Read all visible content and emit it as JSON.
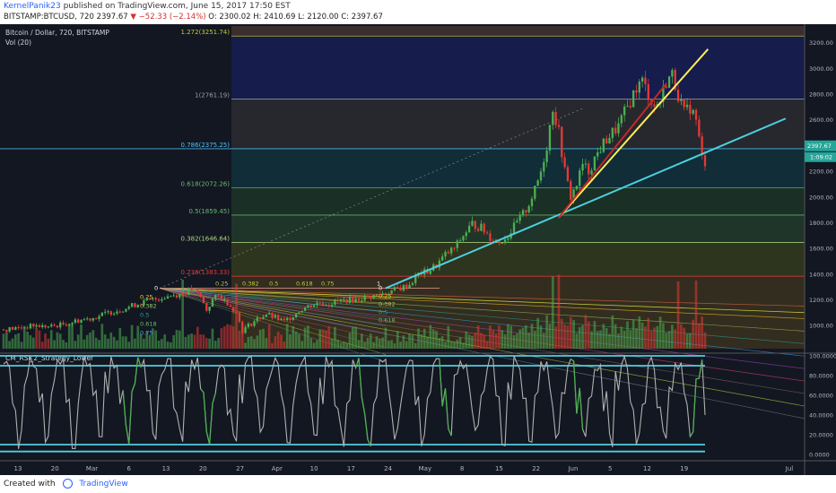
{
  "header": {
    "user": "KernelPanik23",
    "published": "published on TradingView.com, June 15, 2017 17:50 EST",
    "symbol_line": "BITSTAMP:BTCUSD, 720",
    "last": "2397.67",
    "change": "−52.33 (−2.14%)",
    "ohlc": "O: 2300.02 H: 2410.69 L: 2120.00 C: 2397.67"
  },
  "footer": {
    "created_with": "Created with",
    "brand": "TradingView"
  },
  "colors": {
    "bg": "#131722",
    "up": "#4caf50",
    "down": "#e53935",
    "cyan": "#4dd0e1",
    "yellow": "#ffee58",
    "red": "#c62828",
    "rsi": "#b0b0b0"
  },
  "chart_data": [
    {
      "type": "candlestick",
      "title": "Bitcoin / Dollar, 720, BITSTAMP",
      "indicator_label": "Vol (20)",
      "x_ticks": [
        "13",
        "20",
        "Mar",
        "6",
        "13",
        "20",
        "27",
        "Apr",
        "10",
        "17",
        "24",
        "May",
        "8",
        "15",
        "22",
        "Jun",
        "5",
        "12",
        "19",
        "Jul"
      ],
      "y_ticks": [
        1000,
        1200,
        1400,
        1600,
        1800,
        2000,
        2200,
        2400,
        2600,
        2800,
        3000,
        3200
      ],
      "ylim": [
        820,
        3330
      ],
      "price_labels": [
        "2397.67",
        "1:09:02"
      ],
      "fib_levels": [
        {
          "label": "1.272(3251.74)",
          "value": 3251.74
        },
        {
          "label": "1(2761.19)",
          "value": 2761.19
        },
        {
          "label": "0.786(2375.25)",
          "value": 2375.25
        },
        {
          "label": "0.618(2072.26)",
          "value": 2072.26
        },
        {
          "label": "0.5(1859.45)",
          "value": 1859.45
        },
        {
          "label": "0.382(1646.64)",
          "value": 1646.64
        },
        {
          "label": "0.236(1383.33)",
          "value": 1383.33
        }
      ],
      "fan_labels": {
        "top": [
          "0.25",
          "0.382",
          "0.5",
          "0.618",
          "0.75",
          "1"
        ],
        "left": [
          "0",
          "0.25",
          "0.382",
          "0.5",
          "0.618",
          "0.75"
        ],
        "right": [
          "0",
          "0.25",
          "0.382",
          "0.5",
          "0.618"
        ]
      },
      "price_path": [
        [
          0,
          970
        ],
        [
          5,
          980
        ],
        [
          10,
          1000
        ],
        [
          15,
          990
        ],
        [
          20,
          1010
        ],
        [
          25,
          1040
        ],
        [
          30,
          1060
        ],
        [
          35,
          1100
        ],
        [
          40,
          1130
        ],
        [
          45,
          1170
        ],
        [
          50,
          1200
        ],
        [
          55,
          1230
        ],
        [
          60,
          1250
        ],
        [
          63,
          1280
        ],
        [
          66,
          1220
        ],
        [
          68,
          1120
        ],
        [
          70,
          1200
        ],
        [
          72,
          1230
        ],
        [
          75,
          1180
        ],
        [
          78,
          1100
        ],
        [
          80,
          960
        ],
        [
          82,
          1000
        ],
        [
          85,
          1050
        ],
        [
          88,
          1090
        ],
        [
          91,
          1060
        ],
        [
          94,
          1030
        ],
        [
          97,
          1080
        ],
        [
          100,
          1130
        ],
        [
          103,
          1160
        ],
        [
          106,
          1180
        ],
        [
          109,
          1170
        ],
        [
          112,
          1190
        ],
        [
          115,
          1200
        ],
        [
          118,
          1200
        ],
        [
          121,
          1220
        ],
        [
          124,
          1230
        ],
        [
          127,
          1250
        ],
        [
          130,
          1270
        ],
        [
          133,
          1290
        ],
        [
          136,
          1320
        ],
        [
          139,
          1400
        ],
        [
          142,
          1420
        ],
        [
          145,
          1470
        ],
        [
          148,
          1550
        ],
        [
          151,
          1600
        ],
        [
          154,
          1700
        ],
        [
          157,
          1790
        ],
        [
          160,
          1760
        ],
        [
          163,
          1690
        ],
        [
          166,
          1650
        ],
        [
          169,
          1700
        ],
        [
          172,
          1800
        ],
        [
          175,
          1900
        ],
        [
          178,
          2050
        ],
        [
          180,
          2200
        ],
        [
          182,
          2400
        ],
        [
          184,
          2700
        ],
        [
          186,
          2500
        ],
        [
          188,
          2200
        ],
        [
          190,
          2000
        ],
        [
          192,
          2100
        ],
        [
          194,
          2250
        ],
        [
          196,
          2200
        ],
        [
          198,
          2300
        ],
        [
          200,
          2380
        ],
        [
          202,
          2450
        ],
        [
          204,
          2500
        ],
        [
          206,
          2550
        ],
        [
          208,
          2650
        ],
        [
          210,
          2750
        ],
        [
          212,
          2850
        ],
        [
          214,
          2900
        ],
        [
          216,
          2800
        ],
        [
          218,
          2700
        ],
        [
          220,
          2750
        ],
        [
          222,
          2900
        ],
        [
          224,
          2950
        ],
        [
          226,
          2800
        ],
        [
          228,
          2650
        ],
        [
          230,
          2700
        ],
        [
          232,
          2600
        ],
        [
          234,
          2300
        ],
        [
          236,
          2250
        ],
        [
          238,
          2397
        ]
      ],
      "trend_lines": [
        {
          "name": "",
          "color": "cyan",
          "points": [
            [
              128,
              1290
            ],
            [
              262,
              2610
            ]
          ]
        },
        {
          "name": "",
          "color": "yellow",
          "points": [
            [
              186,
              1840
            ],
            [
              236,
              3150
            ]
          ]
        },
        {
          "name": "",
          "color": "red",
          "points": [
            [
              186,
              1840
            ],
            [
              222,
              2880
            ]
          ]
        }
      ]
    },
    {
      "type": "line",
      "title": "CM_RSI_2_Strategy_Lower",
      "y_ticks": [
        "100.0000",
        "80.0000",
        "60.0000",
        "40.0000",
        "20.0000",
        "0.0000"
      ],
      "ylim": [
        0,
        100
      ],
      "band_lines": [
        100,
        90,
        10,
        3
      ],
      "last_value": 40
    }
  ]
}
